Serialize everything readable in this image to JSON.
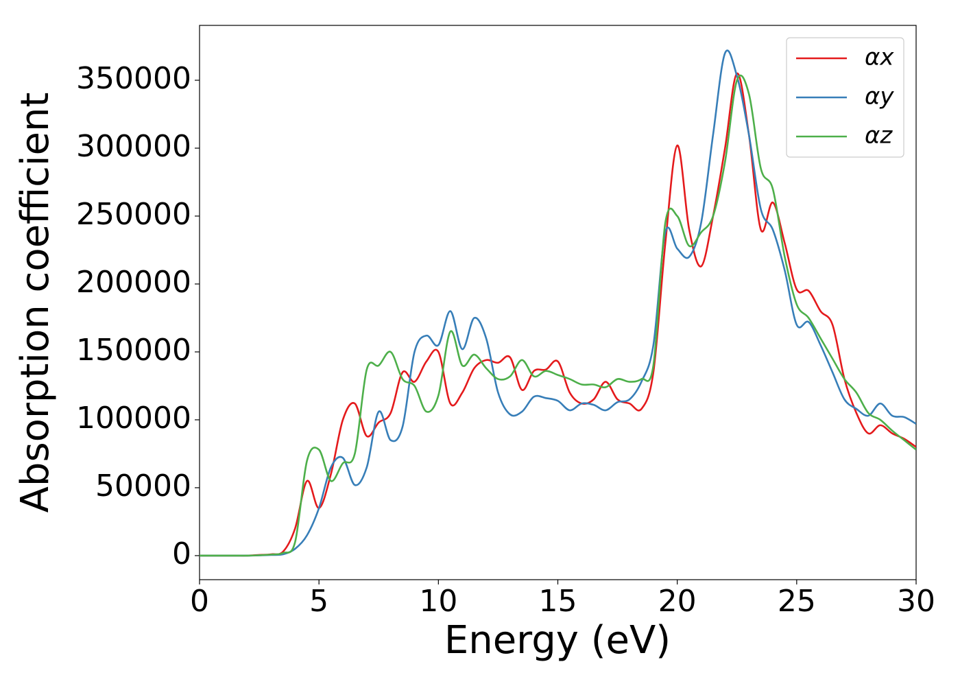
{
  "chart_data": {
    "type": "line",
    "x_label": "Energy (eV)",
    "y_label": "Absorption coefficient",
    "xlim": [
      0,
      30
    ],
    "ylim": [
      -17700,
      390400
    ],
    "xticks": [
      0,
      5,
      10,
      15,
      20,
      25,
      30
    ],
    "yticks": [
      0,
      50000,
      100000,
      150000,
      200000,
      250000,
      300000,
      350000
    ],
    "legend": "upper right",
    "x": [
      0,
      0.5,
      1,
      1.5,
      2,
      2.5,
      3,
      3.5,
      4,
      4.5,
      5,
      5.5,
      6,
      6.5,
      7,
      7.5,
      8,
      8.5,
      9,
      9.5,
      10,
      10.5,
      11,
      11.5,
      12,
      12.5,
      13,
      13.5,
      14,
      14.5,
      15,
      15.5,
      16,
      16.5,
      17,
      17.5,
      18,
      18.5,
      19,
      19.5,
      20,
      20.5,
      21,
      21.5,
      22,
      22.5,
      23,
      23.5,
      24,
      24.5,
      25,
      25.5,
      26,
      26.5,
      27,
      27.5,
      28,
      28.5,
      29,
      29.5,
      30
    ],
    "series": [
      {
        "name": "αx",
        "color": "#e41a1c",
        "values": [
          0,
          0,
          0,
          0,
          0,
          500,
          1000,
          3000,
          20000,
          55000,
          35000,
          60000,
          100000,
          112000,
          88000,
          98000,
          105000,
          135000,
          128000,
          143000,
          150000,
          112000,
          120000,
          138000,
          144000,
          142000,
          146000,
          122000,
          136000,
          137000,
          143000,
          120000,
          112000,
          115000,
          128000,
          115000,
          112000,
          108000,
          135000,
          230000,
          302000,
          240000,
          213000,
          250000,
          300000,
          355000,
          310000,
          240000,
          260000,
          230000,
          196000,
          195000,
          180000,
          170000,
          130000,
          105000,
          90000,
          96000,
          90000,
          86000,
          80000
        ]
      },
      {
        "name": "αy",
        "color": "#377eb8",
        "values": [
          0,
          0,
          0,
          0,
          0,
          200,
          500,
          1000,
          5000,
          15000,
          35000,
          65000,
          72000,
          52000,
          65000,
          106000,
          85000,
          95000,
          150000,
          162000,
          155000,
          180000,
          152000,
          175000,
          160000,
          120000,
          104000,
          106000,
          117000,
          116000,
          114000,
          107000,
          112000,
          111000,
          107000,
          113000,
          115000,
          128000,
          155000,
          238000,
          226000,
          220000,
          245000,
          310000,
          370000,
          353000,
          310000,
          255000,
          240000,
          210000,
          170000,
          172000,
          155000,
          135000,
          115000,
          108000,
          103000,
          112000,
          103000,
          102000,
          97000
        ]
      },
      {
        "name": "αz",
        "color": "#4daf4a",
        "values": [
          0,
          0,
          0,
          0,
          0,
          300,
          800,
          2000,
          10000,
          70000,
          78000,
          55000,
          68000,
          75000,
          137000,
          140000,
          150000,
          130000,
          125000,
          106000,
          118000,
          165000,
          140000,
          148000,
          138000,
          130000,
          132000,
          144000,
          132000,
          136000,
          133000,
          130000,
          126000,
          126000,
          124000,
          130000,
          128000,
          130000,
          140000,
          245000,
          250000,
          228000,
          238000,
          250000,
          290000,
          350000,
          340000,
          285000,
          270000,
          220000,
          185000,
          175000,
          160000,
          145000,
          130000,
          120000,
          105000,
          100000,
          92000,
          85000,
          78000
        ]
      }
    ]
  }
}
